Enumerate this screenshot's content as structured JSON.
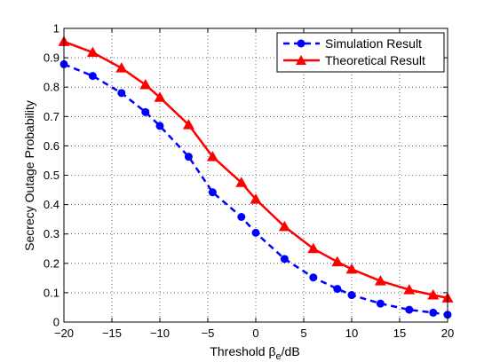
{
  "chart_data": {
    "type": "line",
    "xlabel": "Threshold β",
    "xlabel_sub": "e",
    "xlabel_suffix": "/dB",
    "ylabel": "Secrecy Outage Probability",
    "xlim": [
      -20,
      20
    ],
    "ylim": [
      0,
      1
    ],
    "xticks": [
      -20,
      -15,
      -10,
      -5,
      0,
      5,
      10,
      15,
      20
    ],
    "yticks": [
      0,
      0.1,
      0.2,
      0.3,
      0.4,
      0.5,
      0.6,
      0.7,
      0.8,
      0.9,
      1
    ],
    "xtick_labels": [
      "−20",
      "−15",
      "−10",
      "−5",
      "0",
      "5",
      "10",
      "15",
      "20"
    ],
    "ytick_labels": [
      "0",
      "0.1",
      "0.2",
      "0.3",
      "0.4",
      "0.5",
      "0.6",
      "0.7",
      "0.8",
      "0.9",
      "1"
    ],
    "grid": true,
    "legend_position": "top-right",
    "series": [
      {
        "name": "Simulation Result",
        "color": "#0000ff",
        "line_style": "dashed",
        "marker": "circle",
        "x": [
          -20,
          -17,
          -14,
          -11.5,
          -10,
          -7,
          -4.5,
          -1.5,
          0,
          3,
          6,
          8.5,
          10,
          13,
          16,
          18.5,
          20
        ],
        "y": [
          0.878,
          0.838,
          0.78,
          0.715,
          0.668,
          0.563,
          0.442,
          0.358,
          0.304,
          0.215,
          0.152,
          0.113,
          0.092,
          0.063,
          0.042,
          0.032,
          0.025
        ]
      },
      {
        "name": "Theoretical Result",
        "color": "#ff0000",
        "line_style": "solid",
        "marker": "triangle",
        "x": [
          -20,
          -17,
          -14,
          -11.5,
          -10,
          -7,
          -4.5,
          -1.5,
          0,
          3,
          6,
          8.5,
          10,
          13,
          16,
          18.5,
          20
        ],
        "y": [
          0.955,
          0.918,
          0.865,
          0.808,
          0.765,
          0.672,
          0.563,
          0.475,
          0.418,
          0.325,
          0.25,
          0.205,
          0.18,
          0.14,
          0.11,
          0.092,
          0.082
        ]
      }
    ]
  }
}
